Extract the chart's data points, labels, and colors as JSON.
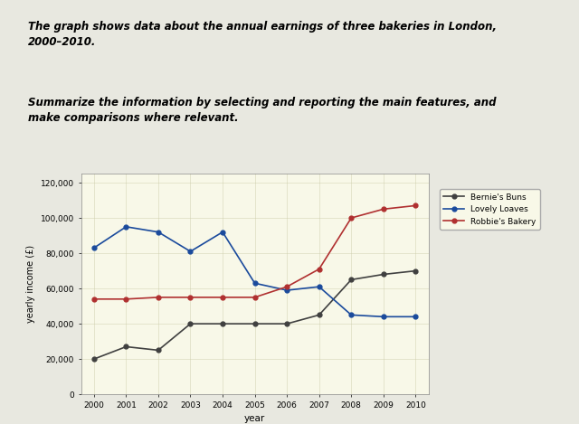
{
  "title_bold_italic": "The graph shows data about the annual earnings of three bakeries in London,\n2000–2010.",
  "subtitle_bold_italic": "Summarize the information by selecting and reporting the main features, and\nmake comparisons where relevant.",
  "years": [
    2000,
    2001,
    2002,
    2003,
    2004,
    2005,
    2006,
    2007,
    2008,
    2009,
    2010
  ],
  "bernies_buns": [
    20000,
    27000,
    25000,
    40000,
    40000,
    40000,
    40000,
    45000,
    65000,
    68000,
    70000
  ],
  "lovely_loaves": [
    83000,
    95000,
    92000,
    81000,
    92000,
    63000,
    59000,
    61000,
    45000,
    44000,
    44000
  ],
  "robbies_bakery": [
    54000,
    54000,
    55000,
    55000,
    55000,
    55000,
    61000,
    71000,
    100000,
    105000,
    107000
  ],
  "bernies_color": "#404040",
  "lovely_color": "#1a4a9c",
  "robbies_color": "#b03030",
  "xlabel": "year",
  "ylabel": "yearly income (£)",
  "ylim": [
    0,
    125000
  ],
  "yticks": [
    0,
    20000,
    40000,
    60000,
    80000,
    100000,
    120000
  ],
  "page_bg": "#e8e8e0",
  "text_bg": "#f0efe5",
  "chart_bg": "#f8f8e8",
  "legend_labels": [
    "Bernie's Buns",
    "Lovely Loaves",
    "Robbie's Bakery"
  ]
}
